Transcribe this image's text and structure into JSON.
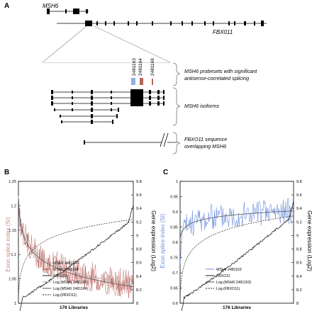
{
  "panel_a": {
    "label": "A",
    "gene_msh6": "MSH6",
    "gene_fbxo11": "FBX011",
    "probesets": [
      "2481163",
      "2481164",
      "2481169"
    ],
    "probeset_colors": [
      "#8fb1e6",
      "#b5675c",
      "#b5675c"
    ],
    "brace_labels": {
      "probesets_line1": "MSH6 probesets with significant",
      "probesets_line2": "antisense-correlated splicing",
      "isoforms": "MSH6 isoforms",
      "overlap_line1": "FBXO11 sequence",
      "overlap_line2": "overlapping MSH6"
    }
  },
  "chart_data": [
    {
      "type": "line",
      "panel": "B",
      "xlabel": "176 Libraries",
      "ylabel_left": "Exon splice index (SI)",
      "ylabel_right": "Gene expression (Log2)",
      "ylim_left": [
        1,
        1.25
      ],
      "ylim_right": [
        8,
        9.8
      ],
      "left_ticks": [
        "1",
        "1.05",
        "1.1",
        "1.15",
        "1.2",
        "1.25"
      ],
      "right_ticks": [
        "8",
        "8.2",
        "8.4",
        "8.6",
        "8.8",
        "9",
        "9.2",
        "9.4",
        "9.6",
        "9.8"
      ],
      "legend": [
        "MSH6 2481169",
        "MSH6 2481164",
        "FBXO11",
        "Log.(MSH6 2481169)",
        "Log.(MSH6 2481164)",
        "Log.(FBXO11)"
      ],
      "series_colors": [
        "#c98b86",
        "#b04c45",
        "#222222"
      ]
    },
    {
      "type": "line",
      "panel": "C",
      "xlabel": "176 Libraries",
      "ylabel_left": "Exon splice index (SI)",
      "ylabel_right": "Gene expression (Log2)",
      "ylim_left": [
        0.6,
        1
      ],
      "ylim_right": [
        8,
        9.8
      ],
      "left_ticks": [
        "0.6",
        "0.65",
        "0.7",
        "0.75",
        "0.8",
        "0.85",
        "0.9",
        "0.95",
        "1"
      ],
      "right_ticks": [
        "8",
        "8.2",
        "8.4",
        "8.6",
        "8.8",
        "9",
        "9.2",
        "9.4",
        "9.6",
        "9.8"
      ],
      "legend": [
        "MSH6 2481163",
        "FBXO11",
        "Log.(MSH6 2481163)",
        "Log.(FBXO11)"
      ],
      "series_colors": [
        "#6d8fe0",
        "#222222"
      ]
    }
  ]
}
